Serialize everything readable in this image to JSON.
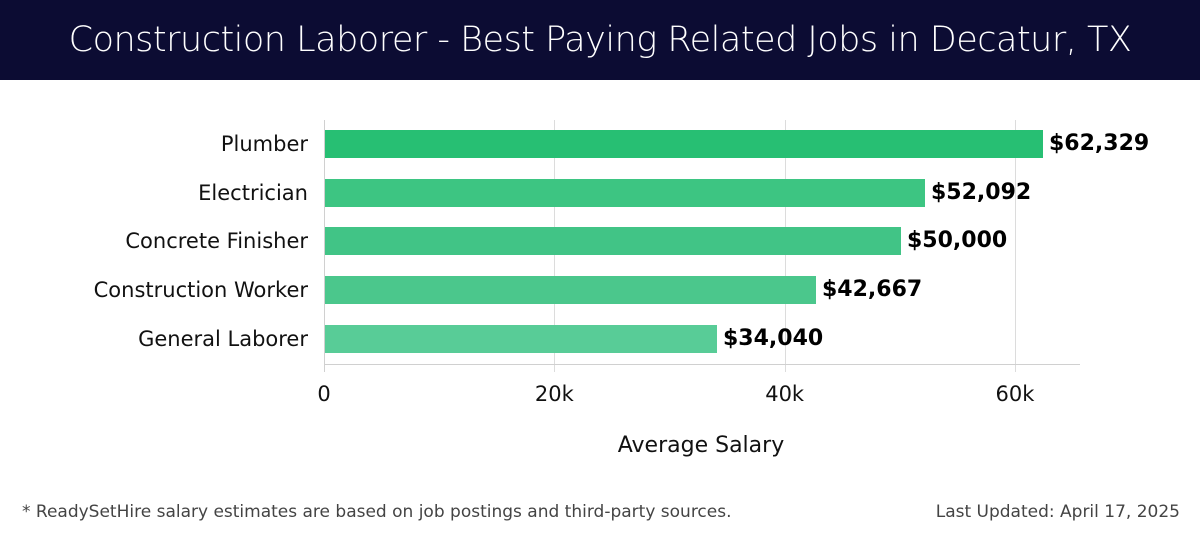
{
  "header": {
    "title": "Construction Laborer - Best Paying Related Jobs in Decatur, TX"
  },
  "chart_data": {
    "type": "bar",
    "orientation": "horizontal",
    "title": "Construction Laborer - Best Paying Related Jobs in Decatur, TX",
    "categories": [
      "Plumber",
      "Electrician",
      "Concrete Finisher",
      "Construction Worker",
      "General Laborer"
    ],
    "values": [
      62329,
      52092,
      50000,
      42667,
      34040
    ],
    "value_labels": [
      "$62,329",
      "$52,092",
      "$50,000",
      "$42,667",
      "$34,040"
    ],
    "colors": [
      "#27bf73",
      "#3dc582",
      "#41c486",
      "#4bc78c",
      "#58cc97"
    ],
    "xlabel": "Average Salary",
    "ylabel": "",
    "xlim": [
      0,
      65500
    ],
    "x_ticks": [
      0,
      20000,
      40000,
      60000
    ],
    "x_tick_labels": [
      "0",
      "20k",
      "40k",
      "60k"
    ],
    "grid": true,
    "legend": null
  },
  "footer": {
    "note": "* ReadySetHire salary estimates are based on job postings and third-party sources.",
    "updated": "Last Updated: April 17, 2025"
  }
}
